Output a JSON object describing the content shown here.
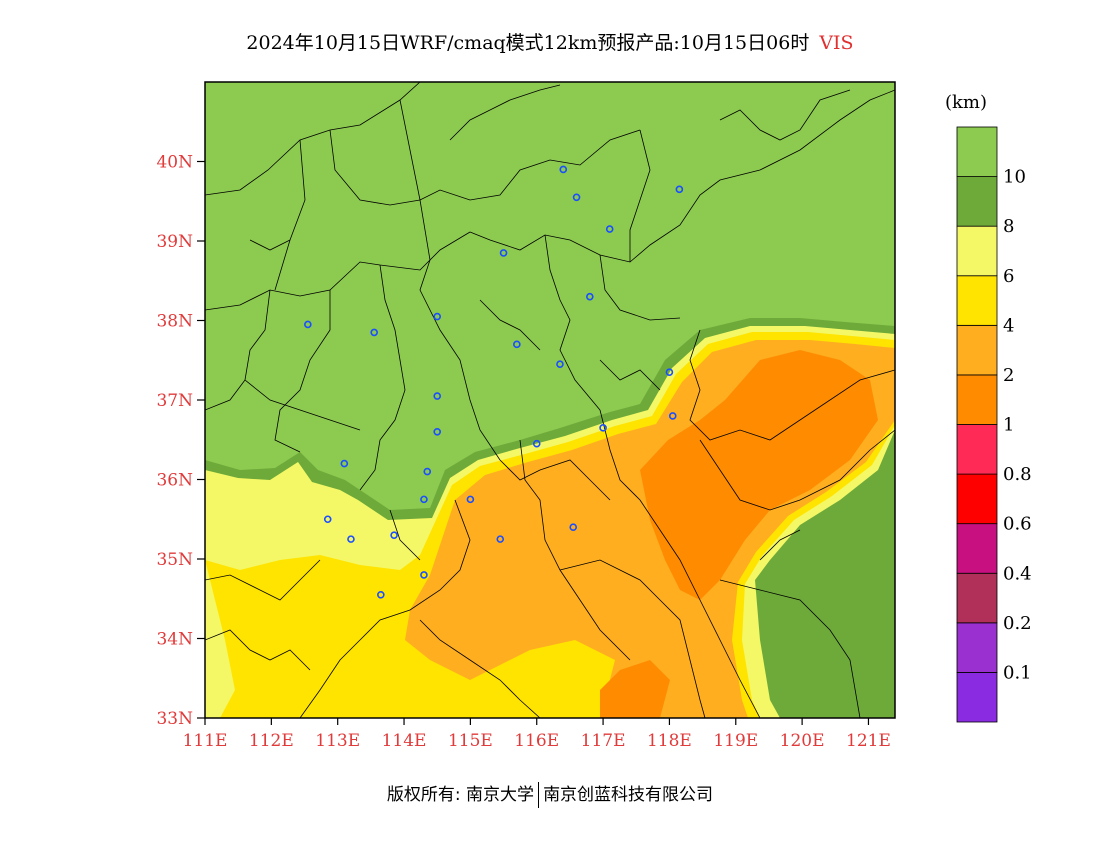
{
  "title": {
    "main": "2024年10月15日WRF/cmaq模式12km预报产品:10月15日06时",
    "variable": "VIS"
  },
  "map": {
    "lon_range": [
      111,
      121.4
    ],
    "lat_range": [
      33,
      41
    ],
    "lon_ticks": [
      {
        "value": 111,
        "label": "111E"
      },
      {
        "value": 112,
        "label": "112E"
      },
      {
        "value": 113,
        "label": "113E"
      },
      {
        "value": 114,
        "label": "114E"
      },
      {
        "value": 115,
        "label": "115E"
      },
      {
        "value": 116,
        "label": "116E"
      },
      {
        "value": 117,
        "label": "117E"
      },
      {
        "value": 118,
        "label": "118E"
      },
      {
        "value": 119,
        "label": "119E"
      },
      {
        "value": 120,
        "label": "120E"
      },
      {
        "value": 121,
        "label": "121E"
      }
    ],
    "lat_ticks": [
      {
        "value": 33,
        "label": "33N"
      },
      {
        "value": 34,
        "label": "34N"
      },
      {
        "value": 35,
        "label": "35N"
      },
      {
        "value": 36,
        "label": "36N"
      },
      {
        "value": 37,
        "label": "37N"
      },
      {
        "value": 38,
        "label": "38N"
      },
      {
        "value": 39,
        "label": "39N"
      },
      {
        "value": 40,
        "label": "40N"
      }
    ],
    "cities": [
      [
        116.4,
        39.9
      ],
      [
        116.6,
        39.55
      ],
      [
        118.15,
        39.65
      ],
      [
        117.1,
        39.15
      ],
      [
        115.5,
        38.85
      ],
      [
        116.8,
        38.3
      ],
      [
        112.55,
        37.95
      ],
      [
        113.55,
        37.85
      ],
      [
        114.5,
        38.05
      ],
      [
        115.7,
        37.7
      ],
      [
        116.35,
        37.45
      ],
      [
        118.0,
        37.35
      ],
      [
        118.05,
        36.8
      ],
      [
        117.0,
        36.65
      ],
      [
        116.0,
        36.45
      ],
      [
        114.5,
        37.05
      ],
      [
        114.5,
        36.6
      ],
      [
        113.1,
        36.2
      ],
      [
        114.35,
        36.1
      ],
      [
        114.3,
        35.75
      ],
      [
        115.0,
        35.75
      ],
      [
        112.85,
        35.5
      ],
      [
        113.2,
        35.25
      ],
      [
        113.85,
        35.3
      ],
      [
        115.45,
        35.25
      ],
      [
        116.55,
        35.4
      ],
      [
        114.3,
        34.8
      ],
      [
        113.65,
        34.55
      ]
    ]
  },
  "colorbar": {
    "unit": "(km)",
    "colors": [
      "#8a2be2",
      "#9b30d0",
      "#b0305a",
      "#c81080",
      "#ff0000",
      "#ff2a55",
      "#ff8c00",
      "#ffae20",
      "#ffe400",
      "#f4f866",
      "#6eaa3a",
      "#8cca50"
    ],
    "labels": [
      "0.1",
      "0.2",
      "0.4",
      "0.6",
      "0.8",
      "1",
      "2",
      "4",
      "6",
      "8",
      "10"
    ]
  },
  "footer": {
    "left": "版权所有: 南京大学",
    "right": "南京创蓝科技有限公司"
  }
}
